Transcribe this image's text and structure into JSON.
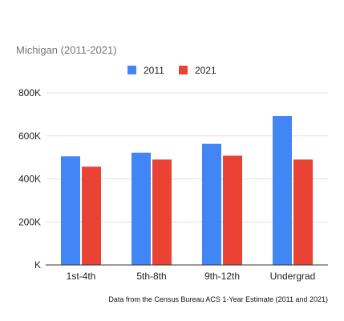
{
  "chart_data": {
    "type": "bar",
    "title": "Michigan (2011-2021)",
    "categories": [
      "1st-4th",
      "5th-8th",
      "9th-12th",
      "Undergrad"
    ],
    "series": [
      {
        "name": "2011",
        "color": "#4285f4",
        "values": [
          505000,
          522000,
          563000,
          692000
        ]
      },
      {
        "name": "2021",
        "color": "#ea4335",
        "values": [
          457000,
          490000,
          508000,
          490000
        ]
      }
    ],
    "ylim": [
      0,
      800000
    ],
    "yticks": [
      {
        "value": 0,
        "label": "K"
      },
      {
        "value": 200000,
        "label": "200K"
      },
      {
        "value": 400000,
        "label": "400K"
      },
      {
        "value": 600000,
        "label": "600K"
      },
      {
        "value": 800000,
        "label": "800K"
      }
    ],
    "xlabel": "",
    "ylabel": "",
    "legend_position": "top-center",
    "grid": true,
    "footer": "Data from the Census Bureau ACS 1-Year Estimate (2011 and 2021)"
  }
}
